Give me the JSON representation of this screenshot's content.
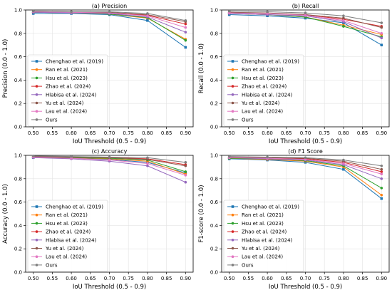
{
  "chart_data": [
    {
      "type": "line",
      "title": "(a) Precision",
      "xlabel": "IoU Threshold (0.5 - 0.9)",
      "ylabel": "Precision (0.0 - 1.0)",
      "x": [
        0.5,
        0.6,
        0.7,
        0.8,
        0.9
      ],
      "xticks": [
        "0.50",
        "0.55",
        "0.60",
        "0.65",
        "0.70",
        "0.75",
        "0.80",
        "0.85",
        "0.90"
      ],
      "yticks": [
        "0.0",
        "0.2",
        "0.4",
        "0.6",
        "0.8",
        "1.0"
      ],
      "xlim": [
        0.48,
        0.92
      ],
      "ylim": [
        0,
        1
      ],
      "grid": true,
      "legend": "lower-left",
      "series": [
        {
          "name": "Chenghao et al. (2019)",
          "values": [
            0.97,
            0.97,
            0.96,
            0.91,
            0.68
          ]
        },
        {
          "name": "Ran et al. (2021)",
          "values": [
            0.98,
            0.975,
            0.965,
            0.93,
            0.75
          ]
        },
        {
          "name": "Hsu et al. (2023)",
          "values": [
            0.98,
            0.975,
            0.965,
            0.935,
            0.74
          ]
        },
        {
          "name": "Zhao et al. (2024)",
          "values": [
            0.985,
            0.98,
            0.975,
            0.955,
            0.88
          ]
        },
        {
          "name": "Hlabisa et al. (2024)",
          "values": [
            0.98,
            0.975,
            0.97,
            0.94,
            0.81
          ]
        },
        {
          "name": "Yu et al. (2024)",
          "values": [
            0.99,
            0.985,
            0.98,
            0.96,
            0.9
          ]
        },
        {
          "name": "Lau et al. (2024)",
          "values": [
            0.985,
            0.98,
            0.975,
            0.95,
            0.85
          ]
        },
        {
          "name": "Ours",
          "values": [
            0.99,
            0.985,
            0.985,
            0.97,
            0.91
          ]
        }
      ]
    },
    {
      "type": "line",
      "title": "(b) Recall",
      "xlabel": "IoU Threshold (0.5 - 0.9)",
      "ylabel": "Recall (0.0 - 1.0)",
      "x": [
        0.5,
        0.6,
        0.7,
        0.8,
        0.9
      ],
      "xticks": [
        "0.50",
        "0.55",
        "0.60",
        "0.65",
        "0.70",
        "0.75",
        "0.80",
        "0.85",
        "0.90"
      ],
      "yticks": [
        "0.0",
        "0.2",
        "0.4",
        "0.6",
        "0.8",
        "1.0"
      ],
      "xlim": [
        0.48,
        0.92
      ],
      "ylim": [
        0,
        1
      ],
      "grid": true,
      "legend": "lower-left",
      "series": [
        {
          "name": "Chenghao et al. (2019)",
          "values": [
            0.96,
            0.95,
            0.93,
            0.89,
            0.7
          ]
        },
        {
          "name": "Ran et al. (2021)",
          "values": [
            0.97,
            0.96,
            0.94,
            0.87,
            0.79
          ]
        },
        {
          "name": "Hsu et al. (2023)",
          "values": [
            0.97,
            0.96,
            0.94,
            0.86,
            0.77
          ]
        },
        {
          "name": "Zhao et al. (2024)",
          "values": [
            0.98,
            0.97,
            0.96,
            0.92,
            0.86
          ]
        },
        {
          "name": "Hlabisa et al. (2024)",
          "values": [
            0.97,
            0.96,
            0.95,
            0.9,
            0.76
          ]
        },
        {
          "name": "Yu et al. (2024)",
          "values": [
            0.98,
            0.975,
            0.96,
            0.93,
            0.85
          ]
        },
        {
          "name": "Lau et al. (2024)",
          "values": [
            0.975,
            0.97,
            0.955,
            0.91,
            0.8
          ]
        },
        {
          "name": "Ours",
          "values": [
            0.99,
            0.985,
            0.975,
            0.95,
            0.89
          ]
        }
      ]
    },
    {
      "type": "line",
      "title": "(c) Accuracy",
      "xlabel": "IoU Threshold (0.5 - 0.9)",
      "ylabel": "Accuracy (0.0 - 1.0)",
      "x": [
        0.5,
        0.6,
        0.7,
        0.8,
        0.9
      ],
      "xticks": [
        "0.50",
        "0.55",
        "0.60",
        "0.65",
        "0.70",
        "0.75",
        "0.80",
        "0.85",
        "0.90"
      ],
      "yticks": [
        "0.0",
        "0.2",
        "0.4",
        "0.6",
        "0.8",
        "1.0"
      ],
      "xlim": [
        0.48,
        0.92
      ],
      "ylim": [
        0,
        1
      ],
      "grid": true,
      "legend": "lower-left",
      "series": [
        {
          "name": "Chenghao et al. (2019)",
          "values": [
            0.98,
            0.975,
            0.965,
            0.94,
            0.85
          ]
        },
        {
          "name": "Ran et al. (2021)",
          "values": [
            0.985,
            0.98,
            0.97,
            0.95,
            0.84
          ]
        },
        {
          "name": "Hsu et al. (2023)",
          "values": [
            0.985,
            0.98,
            0.975,
            0.96,
            0.86
          ]
        },
        {
          "name": "Zhao et al. (2024)",
          "values": [
            0.99,
            0.985,
            0.98,
            0.97,
            0.92
          ]
        },
        {
          "name": "Hlabisa et al. (2024)",
          "values": [
            0.98,
            0.97,
            0.95,
            0.91,
            0.77
          ]
        },
        {
          "name": "Yu et al. (2024)",
          "values": [
            0.99,
            0.985,
            0.98,
            0.965,
            0.91
          ]
        },
        {
          "name": "Lau et al. (2024)",
          "values": [
            0.985,
            0.975,
            0.96,
            0.93,
            0.83
          ]
        },
        {
          "name": "Ours",
          "values": [
            0.995,
            0.99,
            0.985,
            0.98,
            0.94
          ]
        }
      ]
    },
    {
      "type": "line",
      "title": "(d) F1 Score",
      "xlabel": "IoU Threshold (0.5 - 0.9)",
      "ylabel": "F1-score (0.0 - 1.0)",
      "x": [
        0.5,
        0.6,
        0.7,
        0.8,
        0.9
      ],
      "xticks": [
        "0.50",
        "0.55",
        "0.60",
        "0.65",
        "0.70",
        "0.75",
        "0.80",
        "0.85",
        "0.90"
      ],
      "yticks": [
        "0.0",
        "0.2",
        "0.4",
        "0.6",
        "0.8",
        "1.0"
      ],
      "xlim": [
        0.48,
        0.92
      ],
      "ylim": [
        0,
        1
      ],
      "grid": true,
      "legend": "lower-left",
      "series": [
        {
          "name": "Chenghao et al. (2019)",
          "values": [
            0.97,
            0.96,
            0.94,
            0.88,
            0.63
          ]
        },
        {
          "name": "Ran et al. (2021)",
          "values": [
            0.975,
            0.965,
            0.95,
            0.9,
            0.66
          ]
        },
        {
          "name": "Hsu et al. (2023)",
          "values": [
            0.975,
            0.97,
            0.955,
            0.91,
            0.72
          ]
        },
        {
          "name": "Zhao et al. (2024)",
          "values": [
            0.985,
            0.98,
            0.97,
            0.94,
            0.86
          ]
        },
        {
          "name": "Hlabisa et al. (2024)",
          "values": [
            0.98,
            0.97,
            0.96,
            0.92,
            0.8
          ]
        },
        {
          "name": "Yu et al. (2024)",
          "values": [
            0.985,
            0.98,
            0.975,
            0.95,
            0.88
          ]
        },
        {
          "name": "Lau et al. (2024)",
          "values": [
            0.98,
            0.975,
            0.965,
            0.93,
            0.84
          ]
        },
        {
          "name": "Ours",
          "values": [
            0.99,
            0.985,
            0.98,
            0.96,
            0.91
          ]
        }
      ]
    }
  ],
  "series_colors": [
    "#1f77b4",
    "#ff7f0e",
    "#2ca02c",
    "#d62728",
    "#9467bd",
    "#8c564b",
    "#e377c2",
    "#7f7f7f"
  ],
  "series_markers": [
    "square",
    "circle",
    "circle",
    "circle",
    "circle",
    "circle",
    "circle",
    "circle"
  ]
}
